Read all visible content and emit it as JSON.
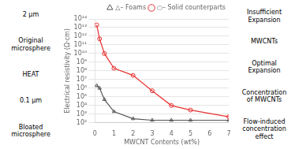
{
  "chart_data": {
    "type": "line",
    "log": "y",
    "xlabel": "MWCNT Contents (wt%)",
    "ylabel": "Electrical resistivity (Ω·cm)",
    "series": [
      {
        "name": "○– Solid counterparts",
        "color": "#e83030",
        "marker": "circle",
        "x": [
          0.1,
          0.25,
          0.5,
          1.0,
          2.0,
          3.0,
          4.0,
          5.0,
          7.0
        ],
        "values": [
          20000000000000.0,
          500000000000.0,
          10000000000.0,
          200000000.0,
          30000000.0,
          500000.0,
          10000.0,
          3000.0,
          500.0
        ]
      },
      {
        "name": "△– Foams",
        "color": "#555555",
        "marker": "triangle",
        "x": [
          0.1,
          0.25,
          0.5,
          1.0,
          2.0,
          3.0,
          4.0,
          5.0,
          7.0
        ],
        "values": [
          2000000.0,
          1000000.0,
          50000.0,
          2000.0,
          300.0,
          200.0,
          200.0,
          200.0,
          200.0
        ]
      }
    ],
    "xlim": [
      0,
      7
    ],
    "xticks": [
      0,
      1,
      2,
      3,
      4,
      5,
      6,
      7
    ],
    "ylim": [
      100,
      100000000000000
    ],
    "yticks": [
      {
        "value": 100,
        "label": "10²"
      },
      {
        "value": 1000,
        "label": "10³"
      },
      {
        "value": 10000,
        "label": "10⁴"
      },
      {
        "value": 100000,
        "label": "10⁵"
      },
      {
        "value": 1000000,
        "label": "10⁶"
      },
      {
        "value": 10000000,
        "label": "10⁷"
      },
      {
        "value": 100000000,
        "label": "10⁸"
      },
      {
        "value": 1000000000,
        "label": "10⁹"
      },
      {
        "value": 10000000000,
        "label": "10¹⁰"
      },
      {
        "value": 100000000000,
        "label": "10¹¹"
      },
      {
        "value": 1000000000000,
        "label": "10¹²"
      },
      {
        "value": 10000000000000,
        "label": "10¹³"
      },
      {
        "value": 100000000000000,
        "label": "10¹⁴"
      }
    ],
    "grid": "y",
    "legend": "upper right",
    "annotations": [
      "2 µm",
      "Original microsphere",
      "HEAT",
      "0.1 µm",
      "Bloated microsphere",
      "Insufficient Expansion",
      "MWCNTs",
      "Optimal Expansion",
      "Concentration\nof MWCNTs",
      "Flow-induced concentration effect"
    ]
  }
}
